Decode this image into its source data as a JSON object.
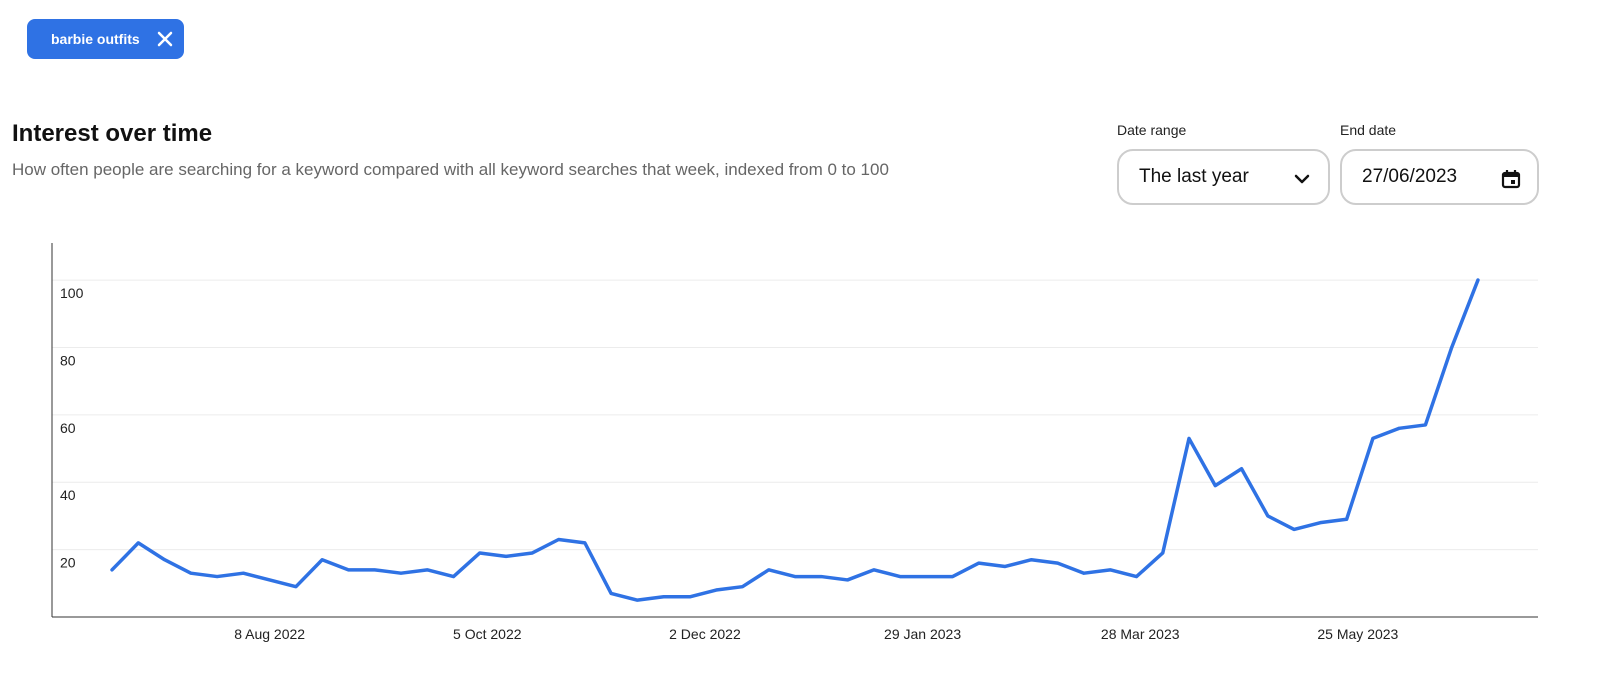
{
  "chip": {
    "label": "barbie outfits"
  },
  "header": {
    "title": "Interest over time",
    "subtitle": "How often people are searching for a keyword compared with all keyword searches that week, indexed from 0 to 100"
  },
  "controls": {
    "date_range": {
      "label": "Date range",
      "value": "The last year"
    },
    "end_date": {
      "label": "End date",
      "value": "27/06/2023"
    }
  },
  "chart_data": {
    "type": "line",
    "color": "#2f72e4",
    "grid": true,
    "x": [
      "2022-06-27",
      "2022-07-04",
      "2022-07-11",
      "2022-07-18",
      "2022-07-25",
      "2022-08-01",
      "2022-08-08",
      "2022-08-15",
      "2022-08-22",
      "2022-08-29",
      "2022-09-05",
      "2022-09-12",
      "2022-09-19",
      "2022-09-26",
      "2022-10-03",
      "2022-10-10",
      "2022-10-17",
      "2022-10-24",
      "2022-10-31",
      "2022-11-07",
      "2022-11-14",
      "2022-11-21",
      "2022-11-28",
      "2022-12-05",
      "2022-12-12",
      "2022-12-19",
      "2022-12-26",
      "2023-01-02",
      "2023-01-09",
      "2023-01-16",
      "2023-01-23",
      "2023-01-30",
      "2023-02-06",
      "2023-02-13",
      "2023-02-20",
      "2023-02-27",
      "2023-03-06",
      "2023-03-13",
      "2023-03-20",
      "2023-03-27",
      "2023-04-03",
      "2023-04-10",
      "2023-04-17",
      "2023-04-24",
      "2023-05-01",
      "2023-05-08",
      "2023-05-15",
      "2023-05-22",
      "2023-05-29",
      "2023-06-05",
      "2023-06-12",
      "2023-06-19",
      "2023-06-26"
    ],
    "values": [
      14,
      22,
      17,
      13,
      12,
      13,
      11,
      9,
      17,
      14,
      14,
      13,
      14,
      12,
      19,
      18,
      19,
      23,
      22,
      7,
      5,
      6,
      6,
      8,
      9,
      14,
      12,
      12,
      11,
      14,
      12,
      12,
      12,
      16,
      15,
      17,
      16,
      13,
      14,
      12,
      19,
      53,
      39,
      44,
      30,
      26,
      28,
      29,
      53,
      56,
      57,
      80,
      100
    ],
    "xlim": [
      "2022-06-11",
      "2023-07-12"
    ],
    "xticks": [
      {
        "value": "2022-08-08",
        "label": "8 Aug 2022"
      },
      {
        "value": "2022-10-05",
        "label": "5 Oct 2022"
      },
      {
        "value": "2022-12-02",
        "label": "2 Dec 2022"
      },
      {
        "value": "2023-01-29",
        "label": "29 Jan 2023"
      },
      {
        "value": "2023-03-28",
        "label": "28 Mar 2023"
      },
      {
        "value": "2023-05-25",
        "label": "25 May 2023"
      }
    ],
    "ylim": [
      0,
      111
    ],
    "yticks": [
      20,
      40,
      60,
      80,
      100
    ]
  }
}
